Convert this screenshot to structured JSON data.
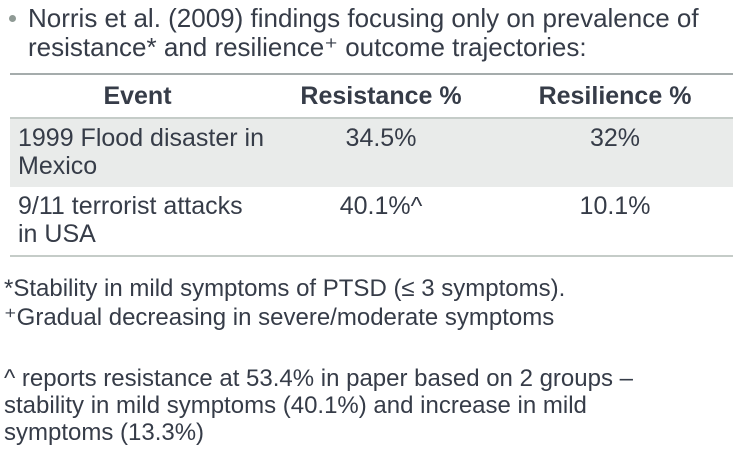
{
  "slide": {
    "title_line1": "Norris et al. (2009) findings focusing only on prevalence of",
    "title_line2": "resistance* and resilience⁺ outcome trajectories:"
  },
  "table": {
    "headers": [
      "Event",
      "Resistance %",
      "Resilience %"
    ],
    "rows": [
      {
        "event": "1999 Flood disaster in Mexico",
        "resistance": "34.5%",
        "resilience": "32%"
      },
      {
        "event": "9/11 terrorist attacks in USA",
        "resistance": "40.1%^",
        "resilience": "10.1%"
      }
    ]
  },
  "footnotes": {
    "asterisk_note": "*Stability in mild symptoms of PTSD (≤ 3 symptoms).",
    "plus_note": "⁺Gradual decreasing in severe/moderate symptoms"
  },
  "caret_note": {
    "line1": "^ reports resistance at 53.4% in paper based on 2 groups –",
    "line2": "stability in mild symptoms (40.1%) and increase in mild",
    "line3": "symptoms (13.3%)"
  },
  "colors": {
    "text": "#363c48",
    "bullet": "#8f9a95",
    "row_alt_bg": "#e9ebea",
    "table_top_border": "#a5acac",
    "table_light_border": "#c5ccc8"
  }
}
